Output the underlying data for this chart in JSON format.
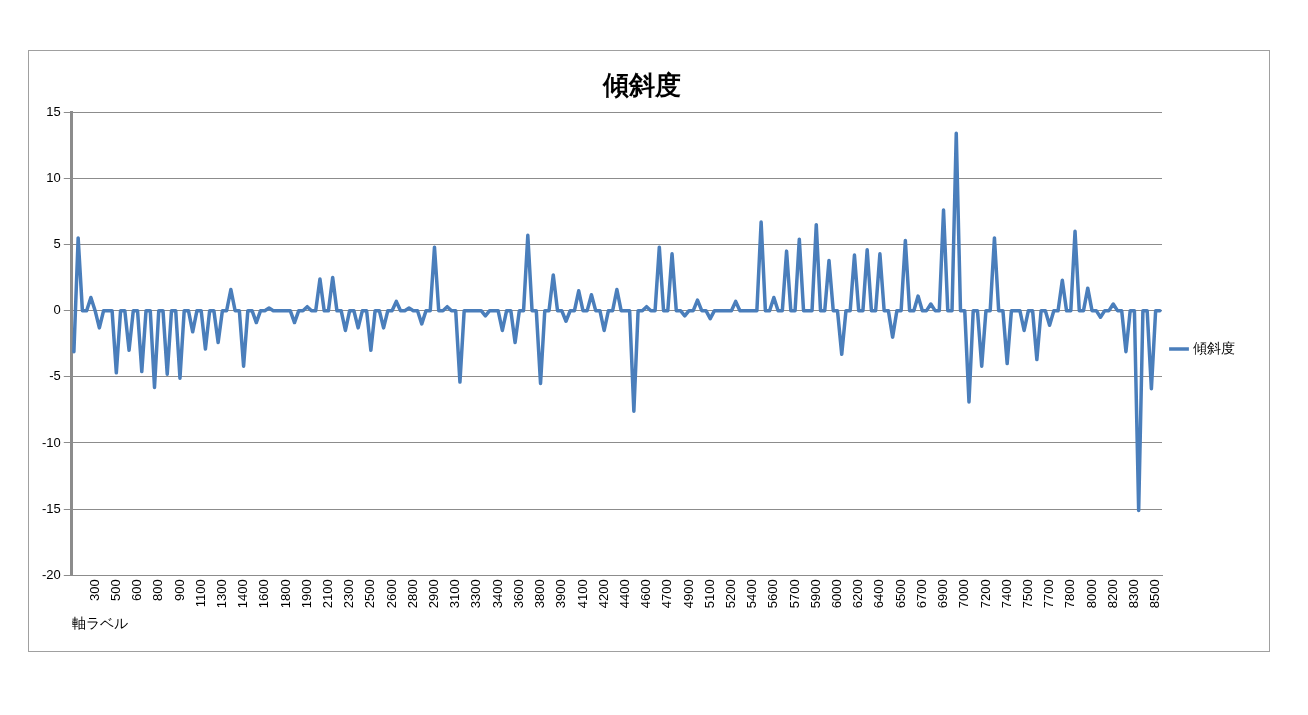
{
  "chart_data": {
    "type": "line",
    "title": "傾斜度",
    "xlabel": "軸ラベル",
    "categories": [
      null,
      null,
      null,
      null,
      null,
      "300",
      null,
      null,
      null,
      null,
      "500",
      null,
      null,
      null,
      null,
      "600",
      null,
      null,
      null,
      null,
      "800",
      null,
      null,
      null,
      null,
      "900",
      null,
      null,
      null,
      null,
      "1100",
      null,
      null,
      null,
      null,
      "1300",
      null,
      null,
      null,
      null,
      "1400",
      null,
      null,
      null,
      null,
      "1600",
      null,
      null,
      null,
      null,
      "1800",
      null,
      null,
      null,
      null,
      "1900",
      null,
      null,
      null,
      null,
      "2100",
      null,
      null,
      null,
      null,
      "2300",
      null,
      null,
      null,
      null,
      "2500",
      null,
      null,
      null,
      null,
      "2600",
      null,
      null,
      null,
      null,
      "2800",
      null,
      null,
      null,
      null,
      "2900",
      null,
      null,
      null,
      null,
      "3100",
      null,
      null,
      null,
      null,
      "3300",
      null,
      null,
      null,
      null,
      "3400",
      null,
      null,
      null,
      null,
      "3600",
      null,
      null,
      null,
      null,
      "3800",
      null,
      null,
      null,
      null,
      "3900",
      null,
      null,
      null,
      null,
      "4100",
      null,
      null,
      null,
      null,
      "4200",
      null,
      null,
      null,
      null,
      "4400",
      null,
      null,
      null,
      null,
      "4600",
      null,
      null,
      null,
      null,
      "4700",
      null,
      null,
      null,
      null,
      "4900",
      null,
      null,
      null,
      null,
      "5100",
      null,
      null,
      null,
      null,
      "5200",
      null,
      null,
      null,
      null,
      "5400",
      null,
      null,
      null,
      null,
      "5600",
      null,
      null,
      null,
      null,
      "5700",
      null,
      null,
      null,
      null,
      "5900",
      null,
      null,
      null,
      null,
      "6000",
      null,
      null,
      null,
      null,
      "6200",
      null,
      null,
      null,
      null,
      "6400",
      null,
      null,
      null,
      null,
      "6500",
      null,
      null,
      null,
      null,
      "6700",
      null,
      null,
      null,
      null,
      "6900",
      null,
      null,
      null,
      null,
      "7000",
      null,
      null,
      null,
      null,
      "7200",
      null,
      null,
      null,
      null,
      "7400",
      null,
      null,
      null,
      null,
      "7500",
      null,
      null,
      null,
      null,
      "7700",
      null,
      null,
      null,
      null,
      "7800",
      null,
      null,
      null,
      null,
      "8000",
      null,
      null,
      null,
      null,
      "8200",
      null,
      null,
      null,
      null,
      "8300",
      null,
      null,
      null,
      null,
      "8500",
      null
    ],
    "series": [
      {
        "name": "傾斜度",
        "color": "#4a7ebb",
        "values": [
          -3.1,
          5.5,
          0,
          0,
          1.0,
          0,
          -1.3,
          0,
          0,
          0,
          -4.7,
          0,
          0,
          -3.0,
          0,
          0,
          -4.6,
          0,
          0,
          -5.8,
          0,
          0,
          -4.8,
          0,
          0,
          -5.1,
          0,
          0,
          -1.6,
          0,
          0,
          -2.9,
          0,
          0,
          -2.4,
          0,
          0,
          1.6,
          0,
          0,
          -4.2,
          0,
          0,
          -0.9,
          0,
          0,
          0.2,
          0,
          0,
          0,
          0,
          0,
          -0.9,
          0,
          0,
          0.3,
          0,
          0,
          2.4,
          0,
          0,
          2.5,
          0,
          0,
          -1.5,
          0,
          0,
          -1.3,
          0,
          0,
          -3.0,
          0,
          0,
          -1.3,
          0,
          0,
          0.7,
          0,
          0,
          0.2,
          0,
          0,
          -1.0,
          0,
          0,
          4.8,
          0,
          0,
          0.3,
          0,
          0,
          -5.4,
          0,
          0,
          0,
          0,
          0,
          -0.4,
          0,
          0,
          0,
          -1.5,
          0,
          0,
          -2.4,
          0,
          0,
          5.7,
          0,
          0,
          -5.5,
          0,
          0,
          2.7,
          0,
          0,
          -0.8,
          0,
          0,
          1.5,
          0,
          0,
          1.2,
          0,
          0,
          -1.5,
          0,
          0,
          1.6,
          0,
          0,
          0,
          -7.6,
          0,
          0,
          0.3,
          0,
          0,
          4.8,
          0,
          0,
          4.3,
          0,
          0,
          -0.4,
          0,
          0,
          0.8,
          0,
          0,
          -0.6,
          0,
          0,
          0,
          0,
          0,
          0.7,
          0,
          0,
          0,
          0,
          0,
          6.7,
          0,
          0,
          1.0,
          0,
          0,
          4.5,
          0,
          0,
          5.4,
          0,
          0,
          0,
          6.5,
          0,
          0,
          3.8,
          0,
          0,
          -3.3,
          0,
          0,
          4.2,
          0,
          0,
          4.6,
          0,
          0,
          4.3,
          0,
          0,
          -2.0,
          0,
          0,
          5.3,
          0,
          0,
          1.1,
          0,
          0,
          0.5,
          0,
          0,
          7.6,
          0,
          0,
          13.4,
          0,
          0,
          -6.9,
          0,
          0,
          -4.2,
          0,
          0,
          5.5,
          0,
          0,
          -4.0,
          0,
          0,
          0,
          -1.5,
          0,
          0,
          -3.7,
          0,
          0,
          -1.1,
          0,
          0,
          2.3,
          0,
          0,
          6.0,
          0,
          0,
          1.7,
          0,
          0,
          -0.5,
          0,
          0,
          0.5,
          0,
          0,
          -3.1,
          0,
          0,
          -15.1,
          0,
          0,
          -5.9,
          0,
          0
        ]
      }
    ],
    "ylim": [
      -20,
      15
    ],
    "yticks": [
      -20,
      -15,
      -10,
      -5,
      0,
      5,
      10,
      15
    ],
    "grid": "y",
    "legend": "right",
    "marker": "none",
    "line_style": "solid"
  }
}
